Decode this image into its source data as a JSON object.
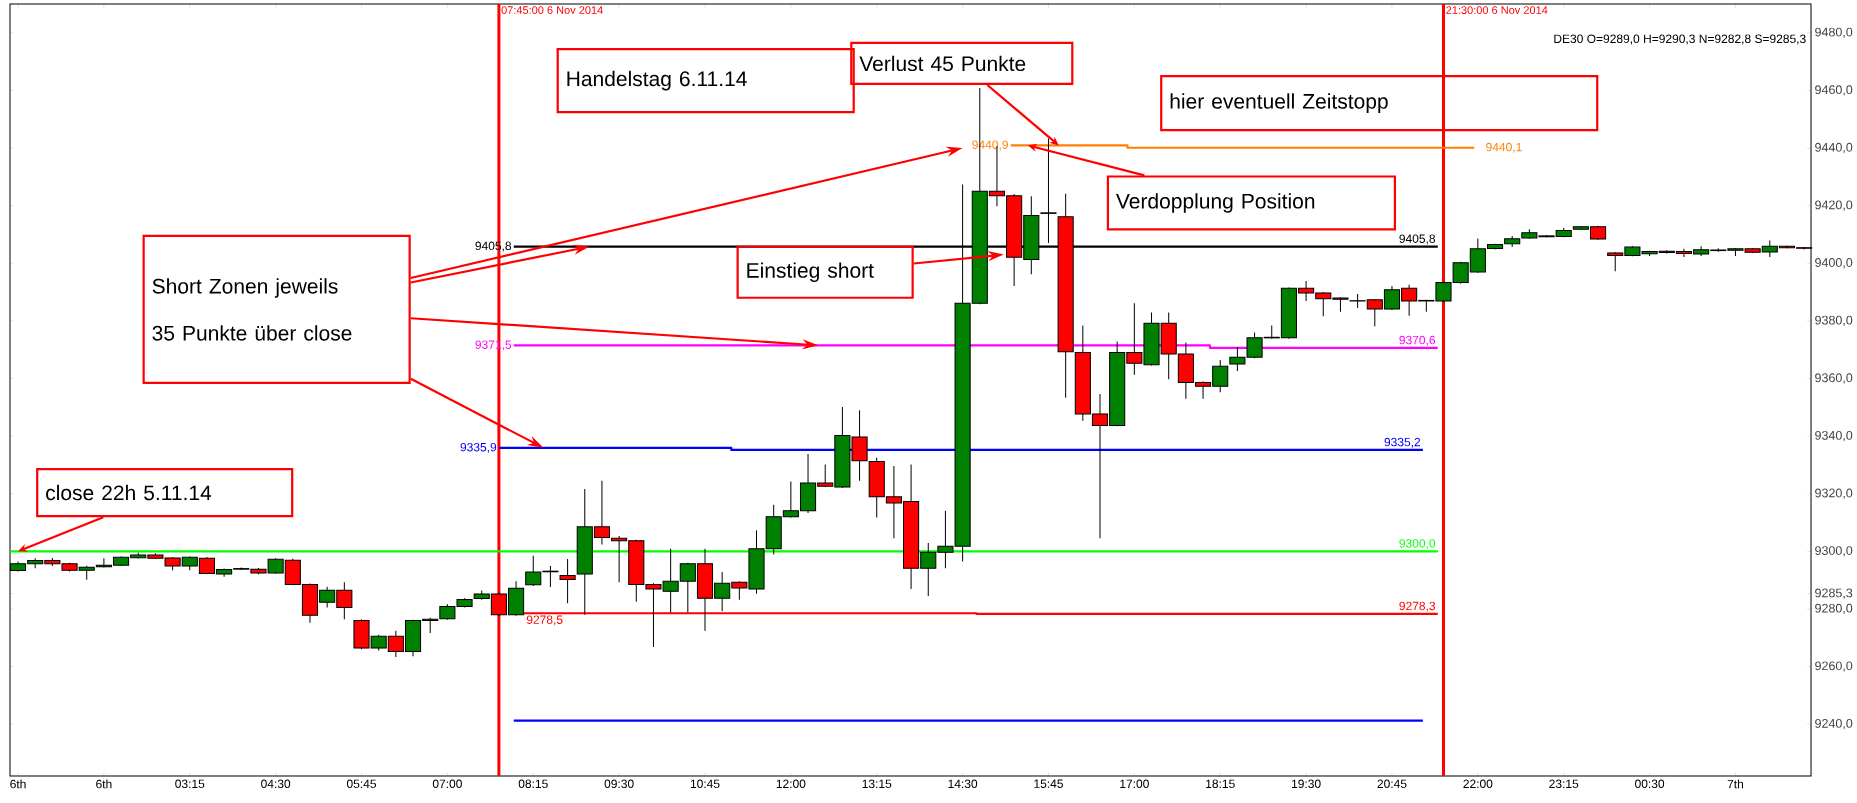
{
  "chart_data": {
    "type": "candlestick",
    "x": [
      "2014-11-06T00:45",
      "2014-11-06T01:00",
      "2014-11-06T01:15",
      "2014-11-06T01:30",
      "2014-11-06T01:45",
      "2014-11-06T02:00",
      "2014-11-06T02:15",
      "2014-11-06T02:30",
      "2014-11-06T02:45",
      "2014-11-06T03:00",
      "2014-11-06T03:15",
      "2014-11-06T03:30",
      "2014-11-06T03:45",
      "2014-11-06T04:00",
      "2014-11-06T04:15",
      "2014-11-06T04:30",
      "2014-11-06T04:45",
      "2014-11-06T05:00",
      "2014-11-06T05:15",
      "2014-11-06T05:30",
      "2014-11-06T05:45",
      "2014-11-06T06:00",
      "2014-11-06T06:15",
      "2014-11-06T06:30",
      "2014-11-06T06:45",
      "2014-11-06T07:00",
      "2014-11-06T07:15",
      "2014-11-06T07:30",
      "2014-11-06T07:45",
      "2014-11-06T08:00",
      "2014-11-06T08:15",
      "2014-11-06T08:30",
      "2014-11-06T08:45",
      "2014-11-06T09:00",
      "2014-11-06T09:15",
      "2014-11-06T09:30",
      "2014-11-06T09:45",
      "2014-11-06T10:00",
      "2014-11-06T10:15",
      "2014-11-06T10:30",
      "2014-11-06T10:45",
      "2014-11-06T11:00",
      "2014-11-06T11:15",
      "2014-11-06T11:30",
      "2014-11-06T11:45",
      "2014-11-06T12:00",
      "2014-11-06T12:15",
      "2014-11-06T12:30",
      "2014-11-06T12:45",
      "2014-11-06T13:00",
      "2014-11-06T13:15",
      "2014-11-06T13:30",
      "2014-11-06T13:45",
      "2014-11-06T14:00",
      "2014-11-06T14:15",
      "2014-11-06T14:30",
      "2014-11-06T14:45",
      "2014-11-06T15:00",
      "2014-11-06T15:15",
      "2014-11-06T15:30",
      "2014-11-06T15:45",
      "2014-11-06T16:00",
      "2014-11-06T16:15",
      "2014-11-06T16:30",
      "2014-11-06T16:45",
      "2014-11-06T17:00",
      "2014-11-06T17:15",
      "2014-11-06T17:30",
      "2014-11-06T17:45",
      "2014-11-06T18:00",
      "2014-11-06T18:15",
      "2014-11-06T18:30",
      "2014-11-06T18:45",
      "2014-11-06T19:00",
      "2014-11-06T19:15",
      "2014-11-06T19:30",
      "2014-11-06T19:45",
      "2014-11-06T20:00",
      "2014-11-06T20:15",
      "2014-11-06T20:30",
      "2014-11-06T20:45",
      "2014-11-06T21:00",
      "2014-11-06T21:15",
      "2014-11-06T21:30",
      "2014-11-06T21:45",
      "2014-11-06T22:00",
      "2014-11-06T22:15",
      "2014-11-06T22:30",
      "2014-11-06T22:45",
      "2014-11-06T23:00",
      "2014-11-06T23:15",
      "2014-11-06T23:30",
      "2014-11-06T23:45",
      "2014-11-07T00:00",
      "2014-11-07T00:15",
      "2014-11-07T00:30",
      "2014-11-07T00:45",
      "2014-11-07T01:00",
      "2014-11-07T01:15",
      "2014-11-07T01:30",
      "2014-11-07T01:45",
      "2014-11-07T02:00",
      "2014-11-07T02:15",
      "2014-11-07T02:30",
      "2014-11-07T02:45"
    ],
    "ohlc": [
      [
        9293.3,
        9296.5,
        9293.0,
        9295.7
      ],
      [
        9295.7,
        9297.6,
        9294.1,
        9296.8
      ],
      [
        9296.8,
        9297.7,
        9294.9,
        9295.7
      ],
      [
        9295.7,
        9296.0,
        9293.0,
        9293.4
      ],
      [
        9293.4,
        9295.0,
        9290.1,
        9294.5
      ],
      [
        9294.6,
        9297.6,
        9294.4,
        9295.2
      ],
      [
        9295.2,
        9298.2,
        9295.0,
        9297.9
      ],
      [
        9297.8,
        9299.5,
        9297.5,
        9298.7
      ],
      [
        9298.7,
        9299.3,
        9297.3,
        9297.6
      ],
      [
        9297.7,
        9298.0,
        9293.4,
        9294.9
      ],
      [
        9294.9,
        9298.2,
        9293.4,
        9297.9
      ],
      [
        9297.6,
        9298.0,
        9292.0,
        9292.3
      ],
      [
        9292.1,
        9294.0,
        9291.2,
        9293.7
      ],
      [
        9293.8,
        9294.4,
        9293.5,
        9294.0
      ],
      [
        9293.8,
        9294.2,
        9292.0,
        9292.5
      ],
      [
        9292.5,
        9297.6,
        9292.2,
        9297.2
      ],
      [
        9296.9,
        9297.4,
        9288.2,
        9288.5
      ],
      [
        9288.5,
        9288.8,
        9275.2,
        9277.8
      ],
      [
        9282.3,
        9287.7,
        9280.5,
        9286.5
      ],
      [
        9286.5,
        9289.3,
        9276.4,
        9280.5
      ],
      [
        9276.0,
        9276.4,
        9266.0,
        9266.4
      ],
      [
        9266.4,
        9271.0,
        9265.6,
        9270.5
      ],
      [
        9270.5,
        9272.4,
        9263.3,
        9265.2
      ],
      [
        9265.2,
        9276.2,
        9263.6,
        9276.0
      ],
      [
        9276.0,
        9276.9,
        9271.6,
        9276.4
      ],
      [
        9276.6,
        9281.6,
        9276.2,
        9280.8
      ],
      [
        9280.8,
        9283.7,
        9280.5,
        9283.3
      ],
      [
        9283.6,
        9286.4,
        9283.2,
        9285.2
      ],
      [
        9285.2,
        9285.6,
        9277.6,
        9278.0
      ],
      [
        9278.0,
        9289.6,
        9277.6,
        9287.2
      ],
      [
        9288.4,
        9298.5,
        9288.0,
        9292.8
      ],
      [
        9292.9,
        9294.9,
        9287.6,
        9293.1
      ],
      [
        9291.6,
        9297.3,
        9282.0,
        9290.2
      ],
      [
        9292.1,
        9321.6,
        9278.0,
        9308.5
      ],
      [
        9308.5,
        9324.5,
        9302.4,
        9304.8
      ],
      [
        9304.5,
        9305.3,
        9289.3,
        9303.7
      ],
      [
        9303.7,
        9304.0,
        9282.5,
        9288.5
      ],
      [
        9288.5,
        9288.9,
        9266.8,
        9286.9
      ],
      [
        9286.1,
        9300.9,
        9278.8,
        9289.6
      ],
      [
        9289.6,
        9296.0,
        9278.8,
        9295.7
      ],
      [
        9295.7,
        9300.9,
        9272.4,
        9283.7
      ],
      [
        9283.7,
        9292.8,
        9279.2,
        9288.9
      ],
      [
        9289.3,
        9289.6,
        9283.2,
        9287.3
      ],
      [
        9286.9,
        9307.3,
        9285.3,
        9300.9
      ],
      [
        9300.9,
        9316.2,
        9298.9,
        9312.0
      ],
      [
        9312.0,
        9324.2,
        9311.7,
        9314.1
      ],
      [
        9314.1,
        9333.8,
        9313.3,
        9323.7
      ],
      [
        9323.7,
        9330.1,
        9322.3,
        9322.6
      ],
      [
        9322.3,
        9350.1,
        9322.0,
        9340.2
      ],
      [
        9339.7,
        9349.0,
        9324.5,
        9331.4
      ],
      [
        9331.2,
        9332.5,
        9311.7,
        9318.9
      ],
      [
        9318.9,
        9329.6,
        9304.5,
        9316.8
      ],
      [
        9317.3,
        9330.1,
        9286.9,
        9294.1
      ],
      [
        9294.1,
        9302.9,
        9284.5,
        9299.7
      ],
      [
        9299.7,
        9314.1,
        9294.1,
        9301.8
      ],
      [
        9301.8,
        9427.3,
        9296.5,
        9386.1
      ],
      [
        9386.1,
        9460.8,
        9385.8,
        9425.0
      ],
      [
        9425.0,
        9440.6,
        9419.8,
        9423.4
      ],
      [
        9423.4,
        9424.0,
        9392.1,
        9402.1
      ],
      [
        9401.3,
        9423.3,
        9396.2,
        9416.6
      ],
      [
        9417.3,
        9443.3,
        9407.0,
        9417.5
      ],
      [
        9416.1,
        9424.1,
        9353.3,
        9369.3
      ],
      [
        9369.0,
        9378.4,
        9345.3,
        9347.7
      ],
      [
        9347.7,
        9354.6,
        9304.5,
        9343.7
      ],
      [
        9343.7,
        9372.8,
        9343.4,
        9369.0
      ],
      [
        9369.0,
        9386.1,
        9361.3,
        9365.3
      ],
      [
        9364.8,
        9382.9,
        9364.5,
        9379.2
      ],
      [
        9379.2,
        9382.9,
        9359.7,
        9368.5
      ],
      [
        9368.5,
        9372.5,
        9353.0,
        9358.6
      ],
      [
        9358.6,
        9359.0,
        9353.0,
        9357.3
      ],
      [
        9357.3,
        9366.4,
        9355.2,
        9364.2
      ],
      [
        9365.0,
        9370.9,
        9362.6,
        9367.4
      ],
      [
        9367.4,
        9376.0,
        9367.0,
        9374.1
      ],
      [
        9374.1,
        9378.4,
        9373.8,
        9374.3
      ],
      [
        9374.1,
        9391.6,
        9373.8,
        9391.3
      ],
      [
        9391.3,
        9393.8,
        9386.9,
        9389.7
      ],
      [
        9389.7,
        9390.0,
        9381.6,
        9387.7
      ],
      [
        9387.9,
        9388.2,
        9383.2,
        9387.5
      ],
      [
        9387.0,
        9389.3,
        9384.5,
        9386.9
      ],
      [
        9387.3,
        9387.6,
        9378.1,
        9384.1
      ],
      [
        9384.1,
        9392.1,
        9383.8,
        9390.8
      ],
      [
        9391.3,
        9392.5,
        9381.8,
        9386.9
      ],
      [
        9386.9,
        9387.3,
        9383.2,
        9387.1
      ],
      [
        9386.9,
        9393.6,
        9386.6,
        9393.3
      ],
      [
        9393.3,
        9400.5,
        9392.9,
        9400.2
      ],
      [
        9397.0,
        9408.6,
        9396.7,
        9405.0
      ],
      [
        9405.1,
        9406.8,
        9404.8,
        9406.5
      ],
      [
        9406.8,
        9409.5,
        9405.6,
        9408.5
      ],
      [
        9408.8,
        9411.8,
        9408.5,
        9410.6
      ],
      [
        9409.5,
        9409.8,
        9409.0,
        9409.2
      ],
      [
        9409.3,
        9412.2,
        9409.0,
        9411.4
      ],
      [
        9411.8,
        9412.9,
        9411.6,
        9412.7
      ],
      [
        9412.7,
        9413.0,
        9408.2,
        9408.4
      ],
      [
        9403.6,
        9403.9,
        9397.2,
        9402.7
      ],
      [
        9402.7,
        9406.0,
        9402.4,
        9405.6
      ],
      [
        9403.3,
        9404.3,
        9402.5,
        9404.1
      ],
      [
        9404.2,
        9404.5,
        9403.4,
        9403.7
      ],
      [
        9404.1,
        9405.0,
        9402.2,
        9403.4
      ],
      [
        9403.2,
        9405.9,
        9402.5,
        9404.7
      ],
      [
        9404.4,
        9405.2,
        9404.0,
        9404.6
      ],
      [
        9404.5,
        9405.3,
        9402.5,
        9405.0
      ],
      [
        9405.0,
        9405.2,
        9403.6,
        9403.8
      ],
      [
        9403.9,
        9407.9,
        9402.2,
        9405.9
      ],
      [
        9405.9,
        9406.1,
        9405.2,
        9405.4
      ],
      [
        9405.4,
        9405.6,
        9404.8,
        9405.2
      ]
    ],
    "colors": [
      "#008000",
      "#008000",
      "#ff0000",
      "#ff0000",
      "#008000",
      "#008000",
      "#008000",
      "#008000",
      "#ff0000",
      "#ff0000",
      "#008000",
      "#ff0000",
      "#008000",
      "#008000",
      "#ff0000",
      "#008000",
      "#ff0000",
      "#ff0000",
      "#008000",
      "#ff0000",
      "#ff0000",
      "#008000",
      "#ff0000",
      "#008000",
      "#008000",
      "#008000",
      "#008000",
      "#008000",
      "#ff0000",
      "#008000",
      "#008000",
      "#008000",
      "#ff0000",
      "#008000",
      "#ff0000",
      "#ff0000",
      "#ff0000",
      "#ff0000",
      "#008000",
      "#008000",
      "#ff0000",
      "#008000",
      "#ff0000",
      "#008000",
      "#008000",
      "#008000",
      "#008000",
      "#ff0000",
      "#008000",
      "#ff0000",
      "#ff0000",
      "#ff0000",
      "#ff0000",
      "#008000",
      "#008000",
      "#008000",
      "#008000",
      "#ff0000",
      "#ff0000",
      "#008000",
      "#008000",
      "#ff0000",
      "#ff0000",
      "#ff0000",
      "#008000",
      "#ff0000",
      "#008000",
      "#ff0000",
      "#ff0000",
      "#ff0000",
      "#008000",
      "#008000",
      "#008000",
      "#008000",
      "#008000",
      "#ff0000",
      "#ff0000",
      "#ff0000",
      "#ff0000",
      "#ff0000",
      "#008000",
      "#ff0000",
      "#008000",
      "#008000",
      "#008000",
      "#008000",
      "#008000",
      "#008000",
      "#008000",
      "#ff0000",
      "#008000",
      "#008000",
      "#ff0000",
      "#ff0000",
      "#008000",
      "#008000",
      "#ff0000",
      "#ff0000",
      "#008000",
      "#008000",
      "#008000",
      "#ff0000",
      "#008000",
      "#ff0000",
      "#ff0000"
    ],
    "series": [
      {
        "type": "line",
        "color": "#000000",
        "x": [
          "2014-11-06T07:58",
          "2014-11-06T21:25"
        ],
        "values": [
          9405.8,
          9405.8
        ],
        "value_labels": [
          "9405,8",
          "9405,8"
        ]
      },
      {
        "type": "line",
        "color": "#ff00ff",
        "x": [
          "2014-11-06T07:58",
          "2014-11-06T18:06",
          "2014-11-06T18:06",
          "2014-11-06T21:25"
        ],
        "values": [
          9371.5,
          9371.5,
          9370.6,
          9370.6
        ],
        "value_labels": [
          "9371,5",
          null,
          null,
          "9370,6"
        ]
      },
      {
        "type": "line",
        "color": "#0000ff",
        "x": [
          "2014-11-06T07:45",
          "2014-11-06T11:08",
          "2014-11-06T11:08",
          "2014-11-06T21:12"
        ],
        "values": [
          9335.9,
          9335.9,
          9335.2,
          9335.2
        ],
        "value_labels": [
          "9335,9",
          null,
          null,
          "9335,2"
        ]
      },
      {
        "type": "line",
        "color": "#00ff00",
        "x": [
          "2014-11-06T00:38",
          "2014-11-06T21:25"
        ],
        "values": [
          9300.0,
          9300.0
        ],
        "value_labels": [
          null,
          "9300,0"
        ]
      },
      {
        "type": "line",
        "color": "#ff0000",
        "x": [
          "2014-11-06T08:07",
          "2014-11-06T14:42",
          "2014-11-06T14:42",
          "2014-11-06T21:25"
        ],
        "values": [
          9278.5,
          9278.5,
          9278.3,
          9278.3
        ],
        "value_labels": [
          "9278,5",
          null,
          null,
          "9278,3"
        ]
      },
      {
        "type": "line",
        "color": "#ff8000",
        "x": [
          "2014-11-06T15:12",
          "2014-11-06T16:54",
          "2014-11-06T16:54",
          "2014-11-06T21:57"
        ],
        "values": [
          9440.9,
          9440.9,
          9440.1,
          9440.1
        ],
        "value_labels": [
          "9440,9",
          null,
          null,
          "9440,1"
        ]
      },
      {
        "type": "line",
        "color": "#0000ff",
        "x": [
          "2014-11-06T07:58",
          "2014-11-06T21:12"
        ],
        "values": [
          9241.2,
          9241.2
        ]
      }
    ],
    "ref_lines": [
      {
        "axis": "x",
        "value": "2014-11-06T07:45",
        "label": "07:45:00 6 Nov 2014",
        "color": "#ff0000"
      },
      {
        "axis": "x",
        "value": "2014-11-06T21:30",
        "label": "21:30:00 6 Nov 2014",
        "color": "#ff0000"
      }
    ],
    "annotations": [
      {
        "text": "close 22h 5.11.14",
        "x": "2014-11-06T00:45",
        "y": 9300
      },
      "Short Zonen jeweils",
      "35 Punkte über close",
      "Handelstag 6.11.14",
      "Einstieg short",
      {
        "text": "Verlust 45 Punkte",
        "x": "2014-11-06T15:54",
        "y": 9440.9
      },
      "hier eventuell Zeitstopp",
      {
        "text": "Verdopplung Position",
        "x": "2014-11-06T15:27",
        "y": 9440.9
      },
      "DE30 O=9289,0 H=9290,3 N=9282,8 S=9285,3"
    ],
    "xlim": [
      "2014-11-06T00:38",
      "2014-11-07T02:51"
    ],
    "xticks": [
      {
        "value": "2014-11-06T00:45",
        "label": "6th"
      },
      {
        "value": "2014-11-06T02:00",
        "label": "6th"
      },
      {
        "value": "2014-11-06T03:15",
        "label": "03:15"
      },
      {
        "value": "2014-11-06T04:30",
        "label": "04:30"
      },
      {
        "value": "2014-11-06T05:45",
        "label": "05:45"
      },
      {
        "value": "2014-11-06T07:00",
        "label": "07:00"
      },
      {
        "value": "2014-11-06T08:15",
        "label": "08:15"
      },
      {
        "value": "2014-11-06T09:30",
        "label": "09:30"
      },
      {
        "value": "2014-11-06T10:45",
        "label": "10:45"
      },
      {
        "value": "2014-11-06T12:00",
        "label": "12:00"
      },
      {
        "value": "2014-11-06T13:15",
        "label": "13:15"
      },
      {
        "value": "2014-11-06T14:30",
        "label": "14:30"
      },
      {
        "value": "2014-11-06T15:45",
        "label": "15:45"
      },
      {
        "value": "2014-11-06T17:00",
        "label": "17:00"
      },
      {
        "value": "2014-11-06T18:15",
        "label": "18:15"
      },
      {
        "value": "2014-11-06T19:30",
        "label": "19:30"
      },
      {
        "value": "2014-11-06T20:45",
        "label": "20:45"
      },
      {
        "value": "2014-11-06T22:00",
        "label": "22:00"
      },
      {
        "value": "2014-11-06T23:15",
        "label": "23:15"
      },
      {
        "value": "2014-11-07T00:30",
        "label": "00:30"
      },
      {
        "value": "2014-11-07T01:45",
        "label": "7th"
      }
    ],
    "ylim": [
      9222,
      9490
    ],
    "yticks": [
      {
        "value": 9240,
        "label": "9240,0"
      },
      {
        "value": 9260,
        "label": "9260,0"
      },
      {
        "value": 9280,
        "label": "9280,0"
      },
      {
        "value": 9285.3,
        "label": "9285,3"
      },
      {
        "value": 9300,
        "label": "9300,0"
      },
      {
        "value": 9320,
        "label": "9320,0"
      },
      {
        "value": 9340,
        "label": "9340,0"
      },
      {
        "value": 9360,
        "label": "9360,0"
      },
      {
        "value": 9380,
        "label": "9380,0"
      },
      {
        "value": 9400,
        "label": "9400,0"
      },
      {
        "value": 9420,
        "label": "9420,0"
      },
      {
        "value": 9440,
        "label": "9440,0"
      },
      {
        "value": 9460,
        "label": "9460,0"
      },
      {
        "value": 9480,
        "label": "9480,0"
      }
    ],
    "grid": false
  }
}
